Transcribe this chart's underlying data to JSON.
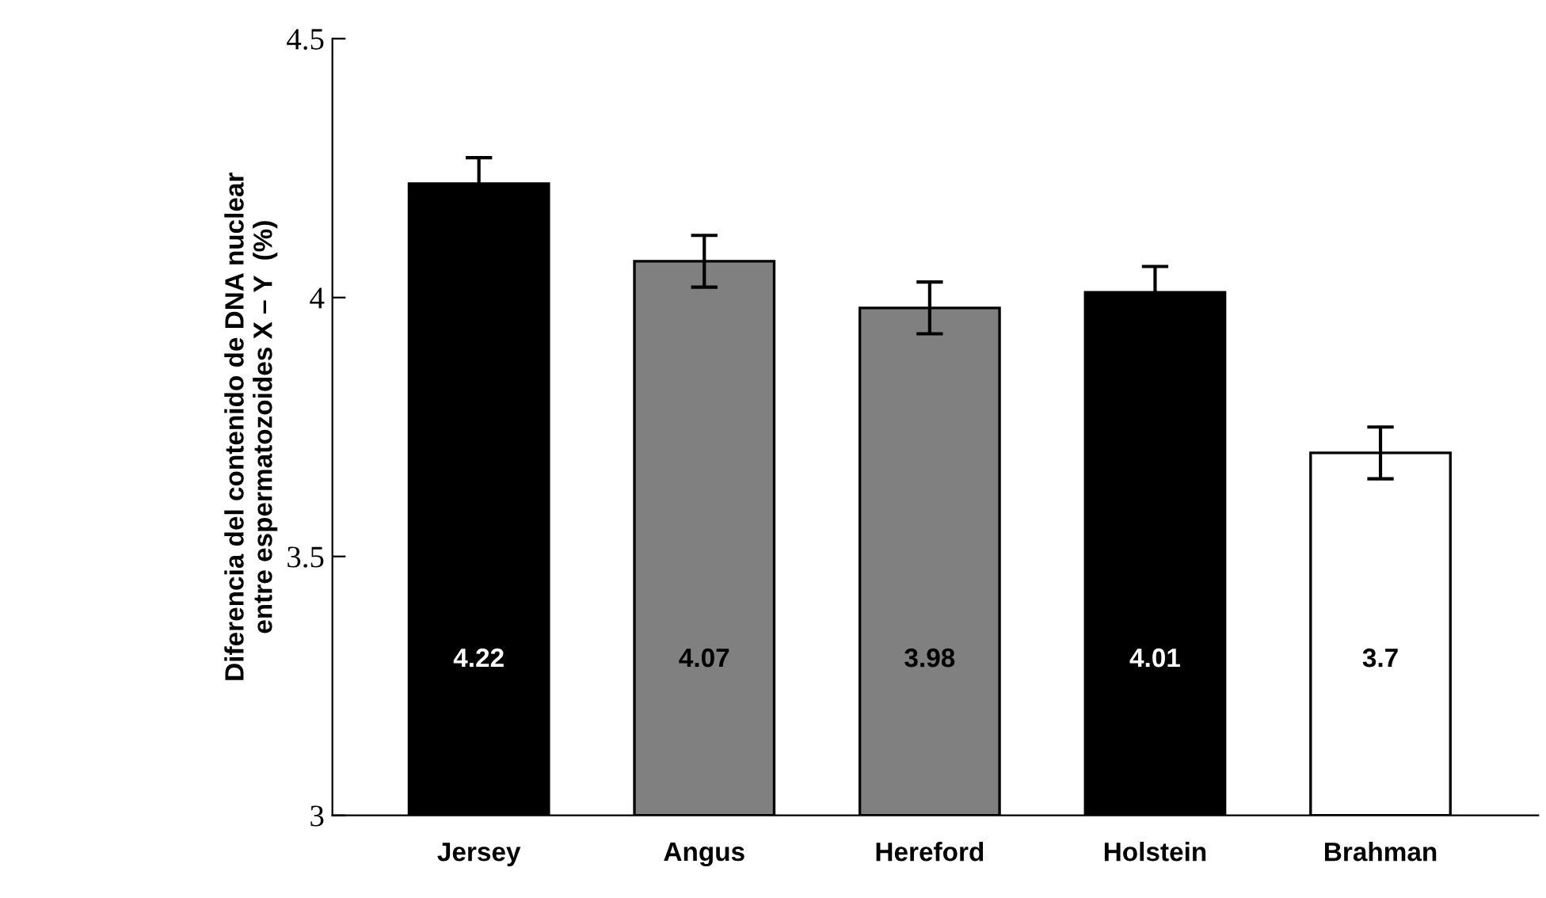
{
  "chart_data": {
    "type": "bar",
    "ylabel": "Diferencia del contenido de DNA nuclear\nentre espermatozoides X – Y  (%)",
    "categories": [
      "Jersey",
      "Angus",
      "Hereford",
      "Holstein",
      "Brahman"
    ],
    "values": [
      4.22,
      4.07,
      3.98,
      4.01,
      3.7
    ],
    "errors": [
      0.05,
      0.05,
      0.05,
      0.05,
      0.05
    ],
    "colors": [
      "#000000",
      "#808080",
      "#808080",
      "#000000",
      "#ffffff"
    ],
    "ylim": [
      3,
      4.5
    ],
    "yticks": [
      3,
      3.5,
      4,
      4.5
    ],
    "data_labels": true,
    "grid": false,
    "legend": false
  }
}
